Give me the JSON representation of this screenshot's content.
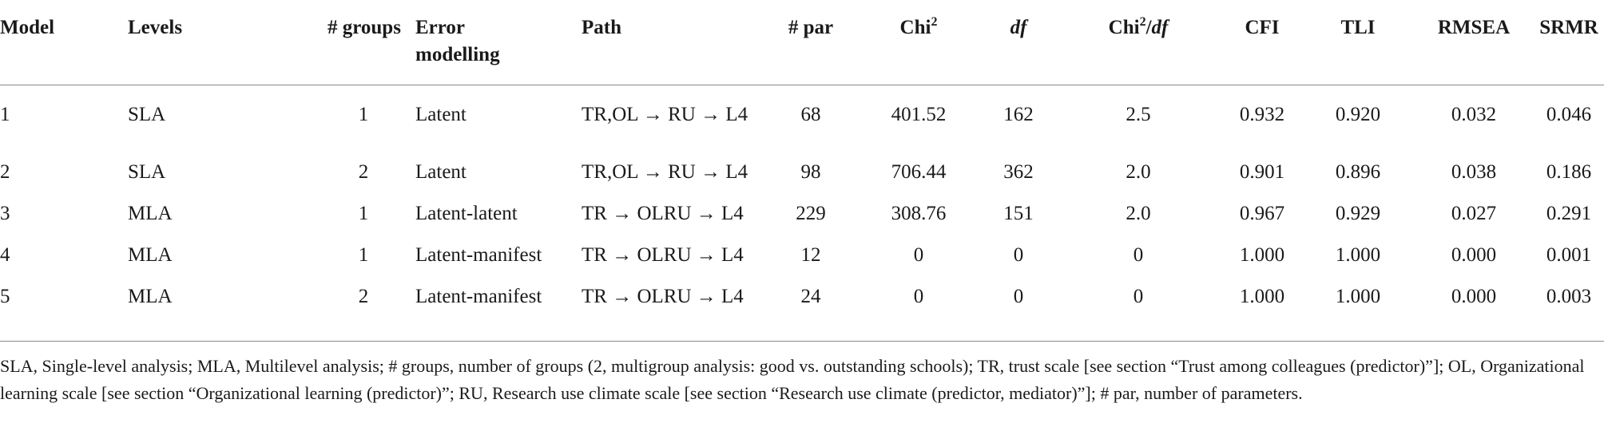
{
  "table": {
    "headers": {
      "model": "Model",
      "levels": "Levels",
      "groups": "# groups",
      "error_line1": "Error",
      "error_line2": "modelling",
      "path": "Path",
      "par": "# par",
      "chi_prefix": "Chi",
      "chi_sup": "2",
      "df": "df",
      "chidf_prefix": "Chi",
      "chidf_sup": "2",
      "chidf_slash": "/",
      "chidf_df": "df",
      "cfi": "CFI",
      "tli": "TLI",
      "rmsea": "RMSEA",
      "srmr": "SRMR"
    },
    "rows": [
      {
        "model": "1",
        "levels": "SLA",
        "groups": "1",
        "error": "Latent",
        "path": "TR,OL → RU → L4",
        "par": "68",
        "chi2": "401.52",
        "df": "162",
        "chi2df": "2.5",
        "cfi": "0.932",
        "tli": "0.920",
        "rmsea": "0.032",
        "srmr": "0.046"
      },
      {
        "model": "2",
        "levels": "SLA",
        "groups": "2",
        "error": "Latent",
        "path": "TR,OL → RU → L4",
        "par": "98",
        "chi2": "706.44",
        "df": "362",
        "chi2df": "2.0",
        "cfi": "0.901",
        "tli": "0.896",
        "rmsea": "0.038",
        "srmr": "0.186"
      },
      {
        "model": "3",
        "levels": "MLA",
        "groups": "1",
        "error": "Latent-latent",
        "path": "TR → OLRU → L4",
        "par": "229",
        "chi2": "308.76",
        "df": "151",
        "chi2df": "2.0",
        "cfi": "0.967",
        "tli": "0.929",
        "rmsea": "0.027",
        "srmr": "0.291"
      },
      {
        "model": "4",
        "levels": "MLA",
        "groups": "1",
        "error": "Latent-manifest",
        "path": "TR → OLRU → L4",
        "par": "12",
        "chi2": "0",
        "df": "0",
        "chi2df": "0",
        "cfi": "1.000",
        "tli": "1.000",
        "rmsea": "0.000",
        "srmr": "0.001"
      },
      {
        "model": "5",
        "levels": "MLA",
        "groups": "2",
        "error": "Latent-manifest",
        "path": "TR → OLRU → L4",
        "par": "24",
        "chi2": "0",
        "df": "0",
        "chi2df": "0",
        "cfi": "1.000",
        "tli": "1.000",
        "rmsea": "0.000",
        "srmr": "0.003"
      }
    ]
  },
  "footnote": "SLA, Single-level analysis; MLA, Multilevel analysis; # groups, number of groups (2, multigroup analysis: good vs. outstanding schools); TR, trust scale [see section “Trust among colleagues (predictor)”]; OL, Organizational learning scale [see section “Organizational learning (predictor)”; RU, Research use climate scale [see section “Research use climate (predictor, mediator)”]; # par, number of parameters."
}
